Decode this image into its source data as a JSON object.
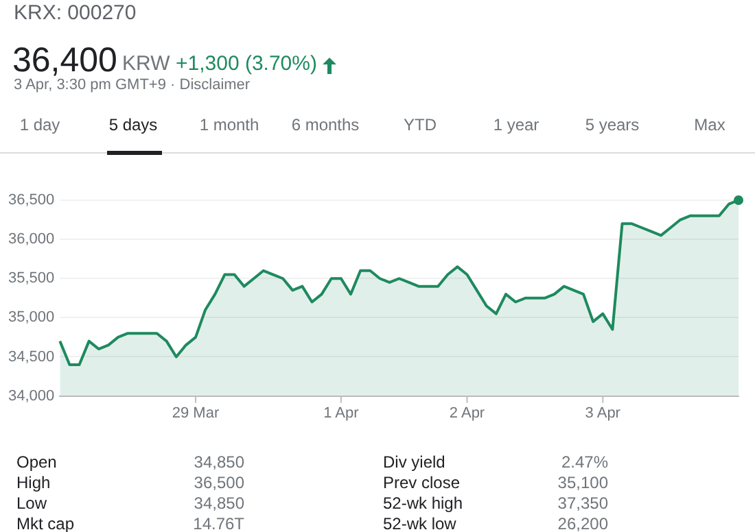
{
  "chart_data": {
    "type": "area",
    "title": "KRX: 000270",
    "annotations": [
      "36,400",
      "KRW",
      "+1,300 (3.70%)",
      "3 Apr, 3:30 pm GMT+9 · Disclaimer",
      "1 day",
      "5 days",
      "1 month",
      "6 months",
      "YTD",
      "1 year",
      "5 years",
      "Max",
      "Open",
      "34,850",
      "High",
      "36,500",
      "Low",
      "34,850",
      "Mkt cap",
      "14.76T",
      "Div yield",
      "2.47%",
      "Prev close",
      "35,100",
      "52-wk high",
      "37,350",
      "52-wk low",
      "26,200"
    ],
    "categories": [
      null,
      null,
      null,
      null,
      null,
      null,
      null,
      null,
      null,
      null,
      null,
      null,
      null,
      null,
      "29 Mar",
      null,
      null,
      null,
      null,
      null,
      null,
      null,
      null,
      null,
      null,
      null,
      null,
      null,
      null,
      "1 Apr",
      null,
      null,
      null,
      null,
      null,
      null,
      null,
      null,
      null,
      null,
      null,
      null,
      "2 Apr",
      null,
      null,
      null,
      null,
      null,
      null,
      null,
      null,
      null,
      null,
      null,
      null,
      null,
      "3 Apr",
      null,
      null,
      null,
      null,
      null,
      null,
      null,
      null,
      null,
      null,
      null,
      null,
      null,
      null
    ],
    "values": [
      34700,
      34400,
      34400,
      34700,
      34600,
      34650,
      34750,
      34800,
      34800,
      34800,
      34800,
      34700,
      34500,
      34650,
      34750,
      35100,
      35300,
      35550,
      35550,
      35400,
      35500,
      35600,
      35550,
      35500,
      35350,
      35400,
      35200,
      35300,
      35500,
      35500,
      35300,
      35600,
      35600,
      35500,
      35450,
      35500,
      35450,
      35400,
      35400,
      35400,
      35550,
      35650,
      35550,
      35350,
      35150,
      35050,
      35300,
      35200,
      35250,
      35250,
      35250,
      35300,
      35400,
      35350,
      35300,
      34950,
      35050,
      34850,
      36200,
      36200,
      36150,
      36100,
      36050,
      36150,
      36250,
      36300,
      36300,
      36300,
      36300,
      36450,
      36500
    ],
    "color": "#1e8a5f",
    "ylim": [
      34000,
      36500
    ],
    "yticks": [
      {
        "value": 34000,
        "label": "34,000"
      },
      {
        "value": 34500,
        "label": "34,500"
      },
      {
        "value": 35000,
        "label": "35,000"
      },
      {
        "value": 35500,
        "label": "35,500"
      },
      {
        "value": 36000,
        "label": "36,000"
      },
      {
        "value": 36500,
        "label": "36,500"
      }
    ],
    "grid": "y",
    "legend": false
  }
}
